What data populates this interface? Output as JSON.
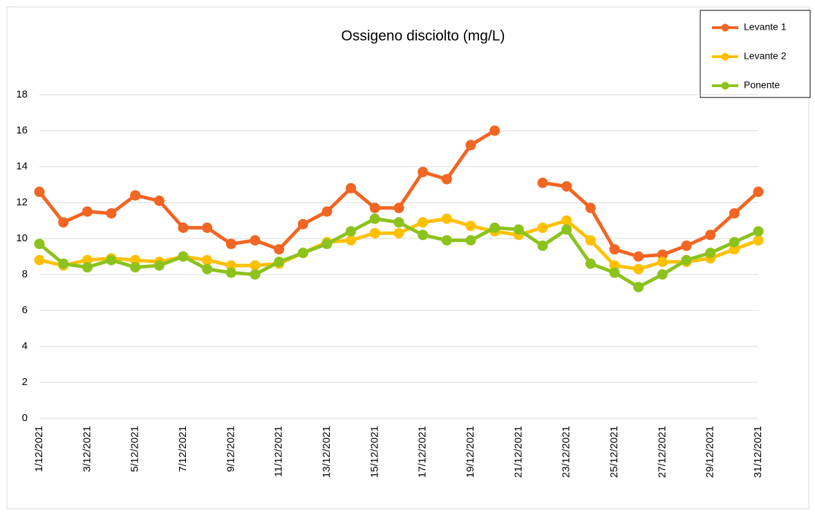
{
  "chart_data": {
    "type": "line",
    "title": "Ossigeno disciolto (mg/L)",
    "categories": [
      "1/12/2021",
      null,
      "3/12/2021",
      null,
      "5/12/2021",
      null,
      "7/12/2021",
      null,
      "9/12/2021",
      null,
      "11/12/2021",
      null,
      "13/12/2021",
      null,
      "15/12/2021",
      null,
      "17/12/2021",
      null,
      "19/12/2021",
      null,
      "21/12/2021",
      null,
      "23/12/2021",
      null,
      "25/12/2021",
      null,
      "27/12/2021",
      null,
      "29/12/2021",
      null,
      "31/12/2021"
    ],
    "series": [
      {
        "name": "Levante 1",
        "color": "#f26522",
        "values": [
          12.6,
          10.9,
          11.5,
          11.4,
          12.4,
          12.1,
          10.6,
          10.6,
          9.7,
          9.9,
          9.4,
          10.8,
          11.5,
          12.8,
          11.7,
          11.7,
          13.7,
          13.3,
          15.2,
          16.0,
          null,
          13.1,
          12.9,
          11.7,
          9.4,
          9.0,
          9.1,
          9.6,
          10.2,
          11.4,
          12.6
        ]
      },
      {
        "name": "Levante 2",
        "color": "#ffc000",
        "values": [
          8.8,
          8.5,
          8.8,
          8.9,
          8.8,
          8.7,
          9.0,
          8.8,
          8.5,
          8.5,
          8.6,
          9.2,
          9.8,
          9.9,
          10.3,
          10.3,
          10.9,
          11.1,
          10.7,
          10.4,
          10.2,
          10.6,
          11.0,
          9.9,
          8.5,
          8.3,
          8.7,
          8.7,
          8.9,
          9.4,
          9.9
        ]
      },
      {
        "name": "Ponente",
        "color": "#8cc21c",
        "values": [
          9.7,
          8.6,
          8.4,
          8.8,
          8.4,
          8.5,
          9.0,
          8.3,
          8.1,
          8.0,
          8.7,
          9.2,
          9.7,
          10.4,
          11.1,
          10.9,
          10.2,
          9.9,
          9.9,
          10.6,
          10.5,
          9.6,
          10.5,
          8.6,
          8.1,
          7.3,
          8.0,
          8.8,
          9.2,
          9.8,
          10.4
        ]
      }
    ],
    "ylim": [
      0,
      18
    ],
    "yticks": [
      0,
      2,
      4,
      6,
      8,
      10,
      12,
      14,
      16,
      18
    ],
    "grid": true,
    "legend": "upper right"
  }
}
